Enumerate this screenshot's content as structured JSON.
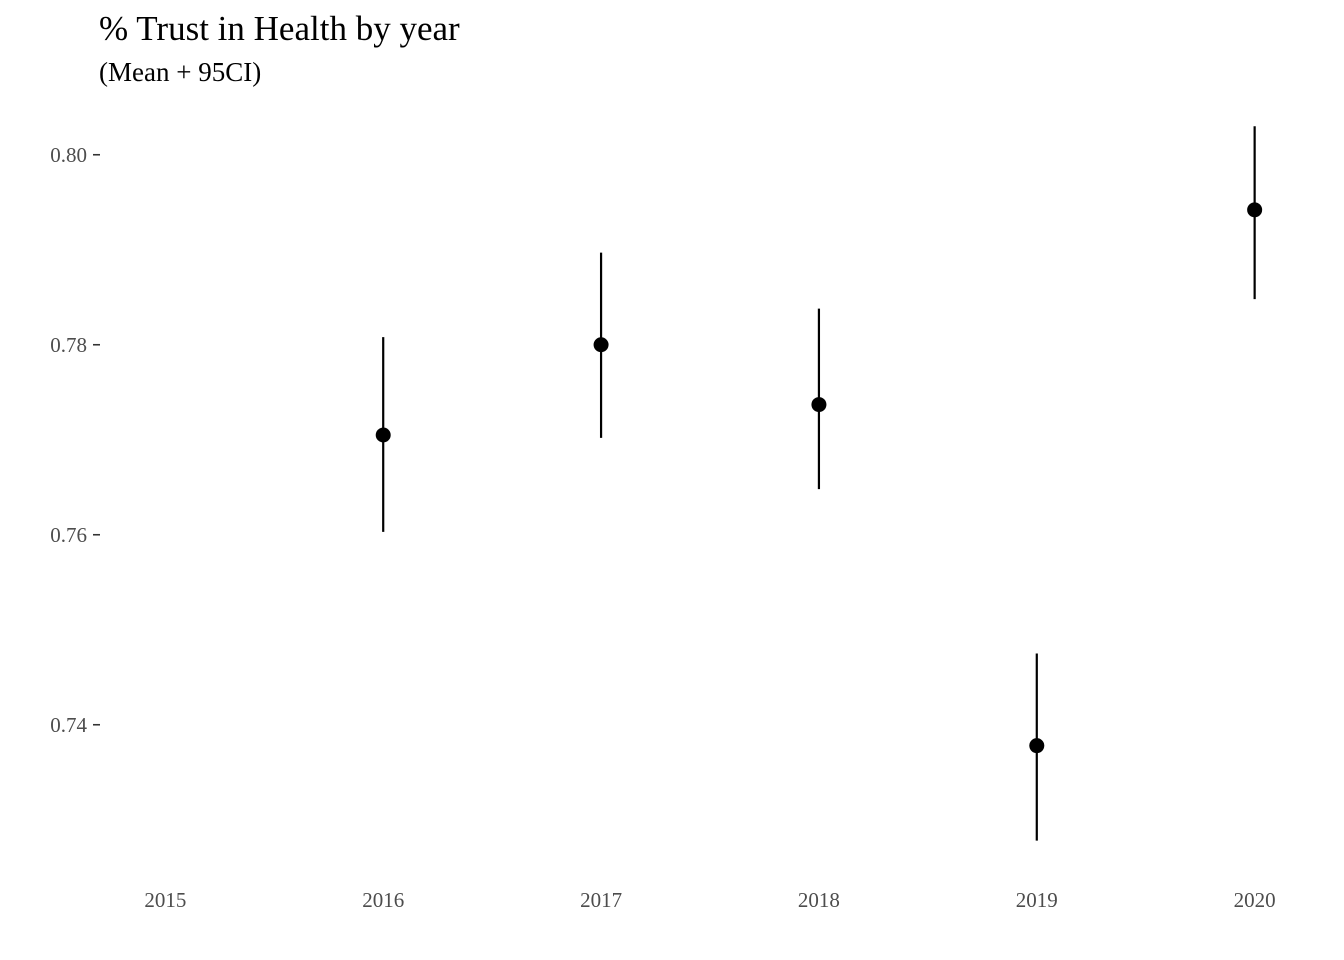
{
  "chart_data": {
    "type": "scatter",
    "title": "% Trust in Health by year",
    "subtitle": "(Mean + 95CI)",
    "xlabel": "",
    "ylabel": "",
    "x_ticks": [
      "2015",
      "2016",
      "2017",
      "2018",
      "2019",
      "2020"
    ],
    "y_ticks": [
      "0.74",
      "0.76",
      "0.78",
      "0.80"
    ],
    "xlim": [
      2014.7,
      2020.3
    ],
    "ylim": [
      0.7245,
      0.8045
    ],
    "grid": false,
    "legend": "none",
    "series": [
      {
        "points": [
          {
            "x": 2016,
            "mean": 0.7705,
            "lower": 0.7603,
            "upper": 0.7808
          },
          {
            "x": 2017,
            "mean": 0.78,
            "lower": 0.7702,
            "upper": 0.7897
          },
          {
            "x": 2018,
            "mean": 0.7737,
            "lower": 0.7648,
            "upper": 0.7838
          },
          {
            "x": 2019,
            "mean": 0.7378,
            "lower": 0.7278,
            "upper": 0.7475
          },
          {
            "x": 2020,
            "mean": 0.7942,
            "lower": 0.7848,
            "upper": 0.803
          }
        ],
        "color": "#000000"
      }
    ]
  }
}
